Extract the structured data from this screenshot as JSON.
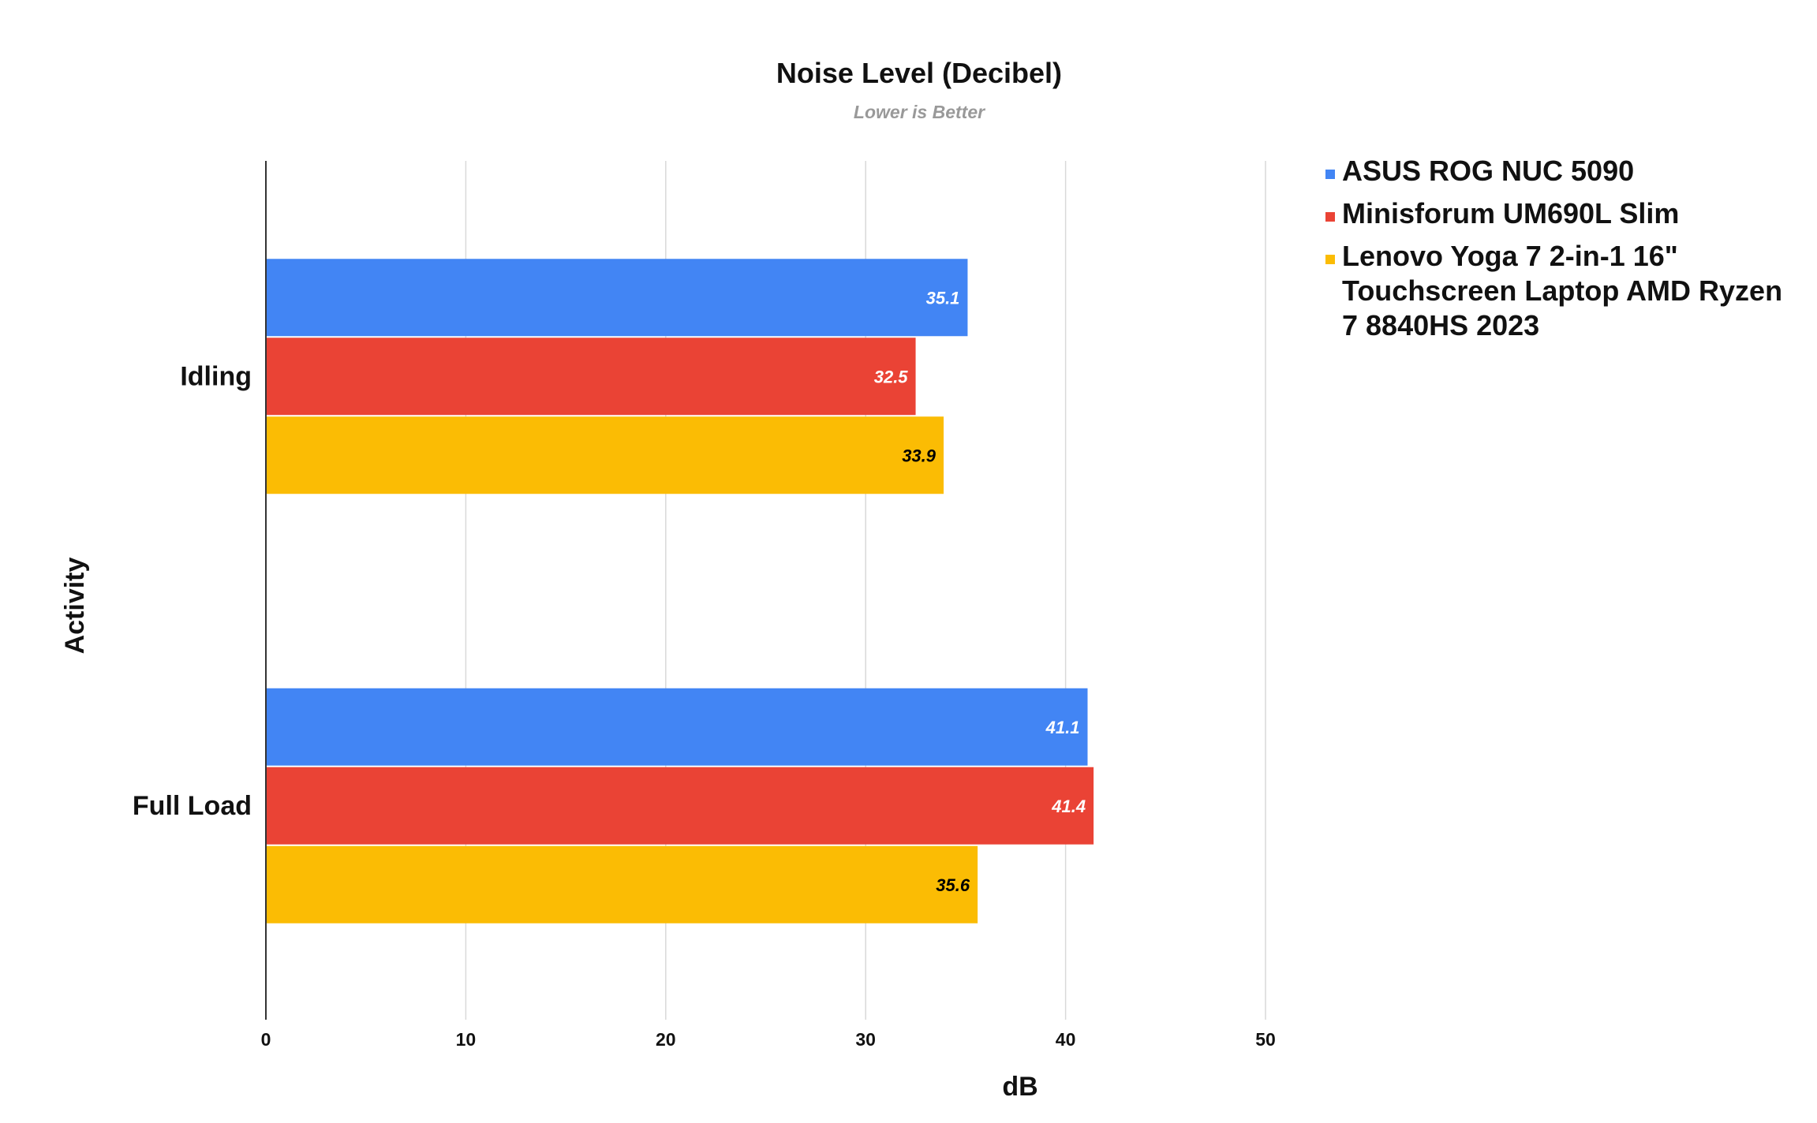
{
  "chart_data": {
    "type": "bar",
    "orientation": "horizontal",
    "title": "Noise Level (Decibel)",
    "subtitle": "Lower is Better",
    "xlabel": "dB",
    "ylabel": "Activity",
    "categories": [
      "Idling",
      "Full Load"
    ],
    "series": [
      {
        "name": "ASUS ROG NUC 5090",
        "color": "#4285F4",
        "label_color": "#ffffff",
        "values": [
          35.1,
          41.1
        ]
      },
      {
        "name": "Minisforum UM690L Slim",
        "color": "#EA4335",
        "label_color": "#ffffff",
        "values": [
          32.5,
          41.4
        ]
      },
      {
        "name": "Lenovo Yoga 7 2-in-1 16\" Touchscreen Laptop AMD Ryzen 7 8840HS 2023",
        "color": "#FBBC04",
        "label_color": "#000000",
        "values": [
          33.9,
          35.6
        ]
      }
    ],
    "legend_lines": [
      [
        "ASUS ROG NUC 5090"
      ],
      [
        "Minisforum UM690L Slim"
      ],
      [
        "Lenovo Yoga 7 2-in-1 16\"",
        "Touchscreen Laptop AMD Ryzen",
        "7 8840HS 2023"
      ]
    ],
    "xlim": [
      0,
      50
    ],
    "xticks": [
      0,
      10,
      20,
      30,
      40,
      50
    ],
    "grid": true,
    "legend_position": "right"
  }
}
